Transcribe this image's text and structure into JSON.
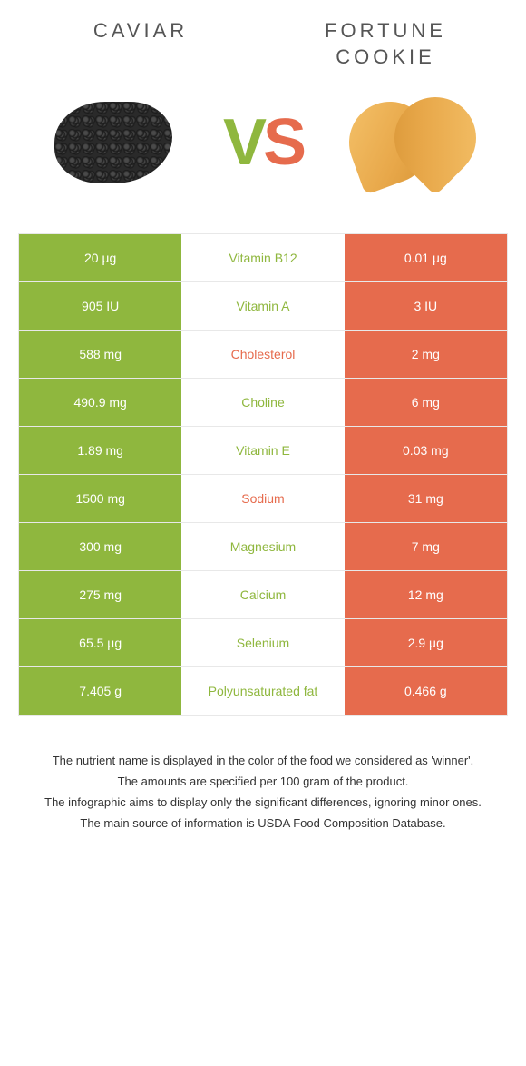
{
  "colors": {
    "green": "#8fb73e",
    "orange": "#e66b4d",
    "border": "#e8e8e8",
    "white": "#ffffff",
    "text": "#333333"
  },
  "header": {
    "left_title": "CAVIAR",
    "right_title": "FORTUNE COOKIE",
    "vs_v": "V",
    "vs_s": "S"
  },
  "rows": [
    {
      "left": "20 µg",
      "mid": "Vitamin B12",
      "right": "0.01 µg",
      "left_bg": "#8fb73e",
      "mid_color": "#8fb73e",
      "right_bg": "#e66b4d"
    },
    {
      "left": "905 IU",
      "mid": "Vitamin A",
      "right": "3 IU",
      "left_bg": "#8fb73e",
      "mid_color": "#8fb73e",
      "right_bg": "#e66b4d"
    },
    {
      "left": "588 mg",
      "mid": "Cholesterol",
      "right": "2 mg",
      "left_bg": "#8fb73e",
      "mid_color": "#e66b4d",
      "right_bg": "#e66b4d"
    },
    {
      "left": "490.9 mg",
      "mid": "Choline",
      "right": "6 mg",
      "left_bg": "#8fb73e",
      "mid_color": "#8fb73e",
      "right_bg": "#e66b4d"
    },
    {
      "left": "1.89 mg",
      "mid": "Vitamin E",
      "right": "0.03 mg",
      "left_bg": "#8fb73e",
      "mid_color": "#8fb73e",
      "right_bg": "#e66b4d"
    },
    {
      "left": "1500 mg",
      "mid": "Sodium",
      "right": "31 mg",
      "left_bg": "#8fb73e",
      "mid_color": "#e66b4d",
      "right_bg": "#e66b4d"
    },
    {
      "left": "300 mg",
      "mid": "Magnesium",
      "right": "7 mg",
      "left_bg": "#8fb73e",
      "mid_color": "#8fb73e",
      "right_bg": "#e66b4d"
    },
    {
      "left": "275 mg",
      "mid": "Calcium",
      "right": "12 mg",
      "left_bg": "#8fb73e",
      "mid_color": "#8fb73e",
      "right_bg": "#e66b4d"
    },
    {
      "left": "65.5 µg",
      "mid": "Selenium",
      "right": "2.9 µg",
      "left_bg": "#8fb73e",
      "mid_color": "#8fb73e",
      "right_bg": "#e66b4d"
    },
    {
      "left": "7.405 g",
      "mid": "Polyunsaturated fat",
      "right": "0.466 g",
      "left_bg": "#8fb73e",
      "mid_color": "#8fb73e",
      "right_bg": "#e66b4d"
    }
  ],
  "footnotes": [
    "The nutrient name is displayed in the color of the food we considered as 'winner'.",
    "The amounts are specified per 100 gram of the product.",
    "The infographic aims to display only the significant differences, ignoring minor ones.",
    "The main source of information is USDA Food Composition Database."
  ]
}
